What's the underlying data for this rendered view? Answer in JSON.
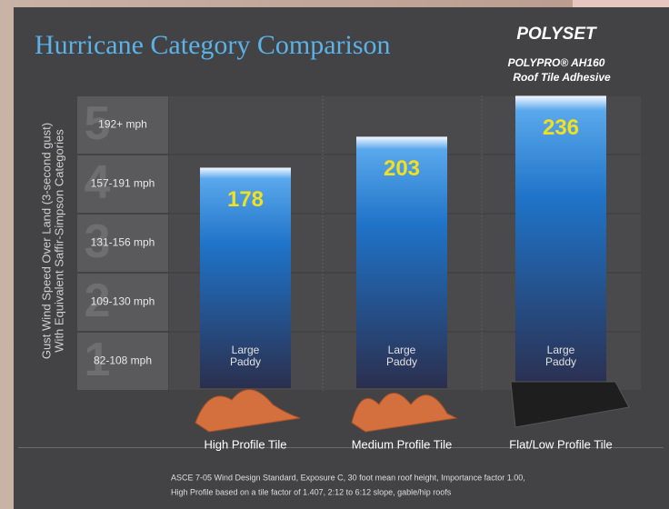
{
  "chart_data": {
    "type": "bar",
    "title": "Hurricane Category Comparison",
    "brand": "POLYSET",
    "product": "POLYPRO® AH160",
    "product_sub": "Roof Tile Adhesive",
    "y_label": [
      "Gust Wind Speed Over Land (3-second gust)",
      "With Equivalent Saffir-Simpson Categories"
    ],
    "bands": [
      {
        "category": "5",
        "label": "192+ mph"
      },
      {
        "category": "4",
        "label": "157-191 mph"
      },
      {
        "category": "3",
        "label": "131-156 mph"
      },
      {
        "category": "2",
        "label": "109-130 mph"
      },
      {
        "category": "1",
        "label": "82-108 mph"
      }
    ],
    "categories": [
      "High Profile Tile",
      "Medium Profile Tile",
      "Flat/Low Profile Tile"
    ],
    "values": [
      178,
      203,
      236
    ],
    "bar_text": [
      [
        "Large",
        "Paddy"
      ],
      [
        "Large",
        "Paddy"
      ],
      [
        "Large",
        "Paddy"
      ]
    ],
    "value_color": "#f0e020",
    "ylim": [
      0,
      240
    ],
    "footnote": [
      "ASCE 7-05 Wind Design Standard, Exposure C, 30 foot mean roof height, Importance factor 1.00,",
      "High Profile based on a tile factor of 1.407, 2:12 to 6:12 slope, gable/hip roofs"
    ]
  }
}
